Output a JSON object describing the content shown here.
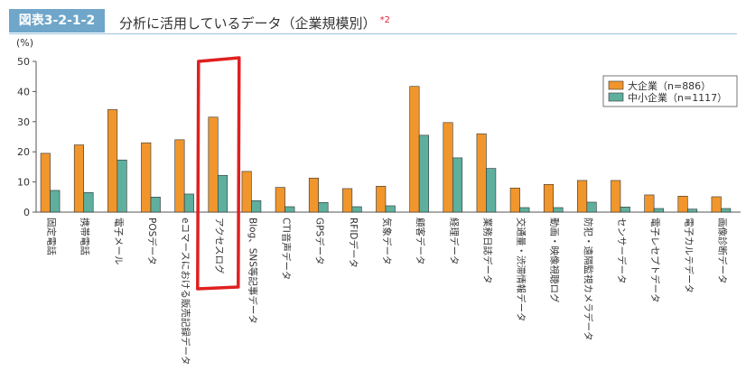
{
  "header": {
    "figure_label": "図表3-2-1-2",
    "title": "分析に活用しているデータ（企業規模別）",
    "note": "*2"
  },
  "colors": {
    "large": "#f0962c",
    "small": "#5eaf9e",
    "highlight": "#e02020",
    "header_label_bg": "#6fa6c9"
  },
  "chart_data": {
    "type": "bar",
    "yunit": "(%)",
    "ylim": [
      0,
      50
    ],
    "yticks": [
      0,
      10,
      20,
      30,
      40,
      50
    ],
    "grid": false,
    "legend_position": "top-right",
    "categories": [
      "固定電話",
      "携帯電話",
      "電子メール",
      "POSデータ",
      "eコマースにおける販売記録データ",
      "アクセスログ",
      "Blog、SNS等記事データ",
      "CTI音声データ",
      "GPSデータ",
      "RFIDデータ",
      "気象データ",
      "顧客データ",
      "経理データ",
      "業務日誌データ",
      "交通量・渋滞情報データ",
      "動画・映像視聴ログ",
      "防犯・遠隔監視カメラデータ",
      "センサーデータ",
      "電子レセプトデータ",
      "電子カルテデータ",
      "画像診断データ"
    ],
    "series": [
      {
        "name": "大企業（n=886）",
        "values": [
          19.5,
          22.3,
          34.0,
          23.0,
          24.0,
          31.5,
          13.5,
          8.2,
          11.3,
          7.8,
          8.6,
          41.7,
          29.7,
          26.0,
          8.0,
          9.2,
          10.5,
          10.5,
          5.7,
          5.3,
          5.1
        ]
      },
      {
        "name": "中小企業（n=1117）",
        "values": [
          7.2,
          6.5,
          17.3,
          5.0,
          6.0,
          12.2,
          3.8,
          1.8,
          3.2,
          1.8,
          2.1,
          25.5,
          18.0,
          14.5,
          1.5,
          1.5,
          3.3,
          1.7,
          1.2,
          1.0,
          1.2
        ]
      }
    ],
    "highlighted_category": "アクセスログ"
  }
}
